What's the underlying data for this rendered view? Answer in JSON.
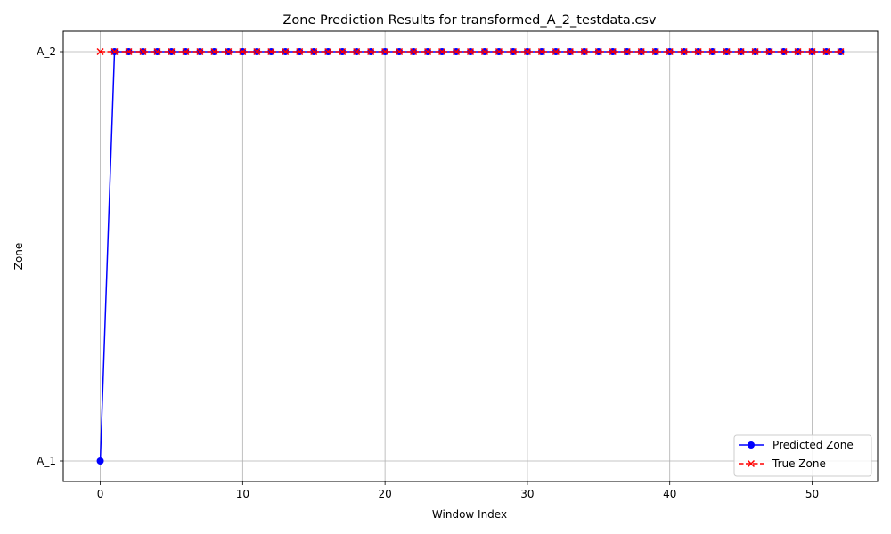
{
  "chart_data": {
    "type": "line",
    "title": "Zone Prediction Results for transformed_A_2_testdata.csv",
    "xlabel": "Window Index",
    "ylabel": "Zone",
    "x_ticks": [
      0,
      10,
      20,
      30,
      40,
      50
    ],
    "y_categories": [
      "A_1",
      "A_2"
    ],
    "xlim": [
      -2.6,
      54.6
    ],
    "ylim": [
      -0.05,
      1.05
    ],
    "grid": true,
    "legend_position": "lower-right",
    "x": [
      0,
      1,
      2,
      3,
      4,
      5,
      6,
      7,
      8,
      9,
      10,
      11,
      12,
      13,
      14,
      15,
      16,
      17,
      18,
      19,
      20,
      21,
      22,
      23,
      24,
      25,
      26,
      27,
      28,
      29,
      30,
      31,
      32,
      33,
      34,
      35,
      36,
      37,
      38,
      39,
      40,
      41,
      42,
      43,
      44,
      45,
      46,
      47,
      48,
      49,
      50,
      51,
      52
    ],
    "series": [
      {
        "name": "Predicted Zone",
        "color": "#0000ff",
        "marker": "circle",
        "linestyle": "solid",
        "values": [
          "A_1",
          "A_2",
          "A_2",
          "A_2",
          "A_2",
          "A_2",
          "A_2",
          "A_2",
          "A_2",
          "A_2",
          "A_2",
          "A_2",
          "A_2",
          "A_2",
          "A_2",
          "A_2",
          "A_2",
          "A_2",
          "A_2",
          "A_2",
          "A_2",
          "A_2",
          "A_2",
          "A_2",
          "A_2",
          "A_2",
          "A_2",
          "A_2",
          "A_2",
          "A_2",
          "A_2",
          "A_2",
          "A_2",
          "A_2",
          "A_2",
          "A_2",
          "A_2",
          "A_2",
          "A_2",
          "A_2",
          "A_2",
          "A_2",
          "A_2",
          "A_2",
          "A_2",
          "A_2",
          "A_2",
          "A_2",
          "A_2",
          "A_2",
          "A_2",
          "A_2",
          "A_2"
        ]
      },
      {
        "name": "True Zone",
        "color": "#ff0000",
        "marker": "x",
        "linestyle": "dashed",
        "values": [
          "A_2",
          "A_2",
          "A_2",
          "A_2",
          "A_2",
          "A_2",
          "A_2",
          "A_2",
          "A_2",
          "A_2",
          "A_2",
          "A_2",
          "A_2",
          "A_2",
          "A_2",
          "A_2",
          "A_2",
          "A_2",
          "A_2",
          "A_2",
          "A_2",
          "A_2",
          "A_2",
          "A_2",
          "A_2",
          "A_2",
          "A_2",
          "A_2",
          "A_2",
          "A_2",
          "A_2",
          "A_2",
          "A_2",
          "A_2",
          "A_2",
          "A_2",
          "A_2",
          "A_2",
          "A_2",
          "A_2",
          "A_2",
          "A_2",
          "A_2",
          "A_2",
          "A_2",
          "A_2",
          "A_2",
          "A_2",
          "A_2",
          "A_2",
          "A_2",
          "A_2",
          "A_2"
        ]
      }
    ]
  }
}
